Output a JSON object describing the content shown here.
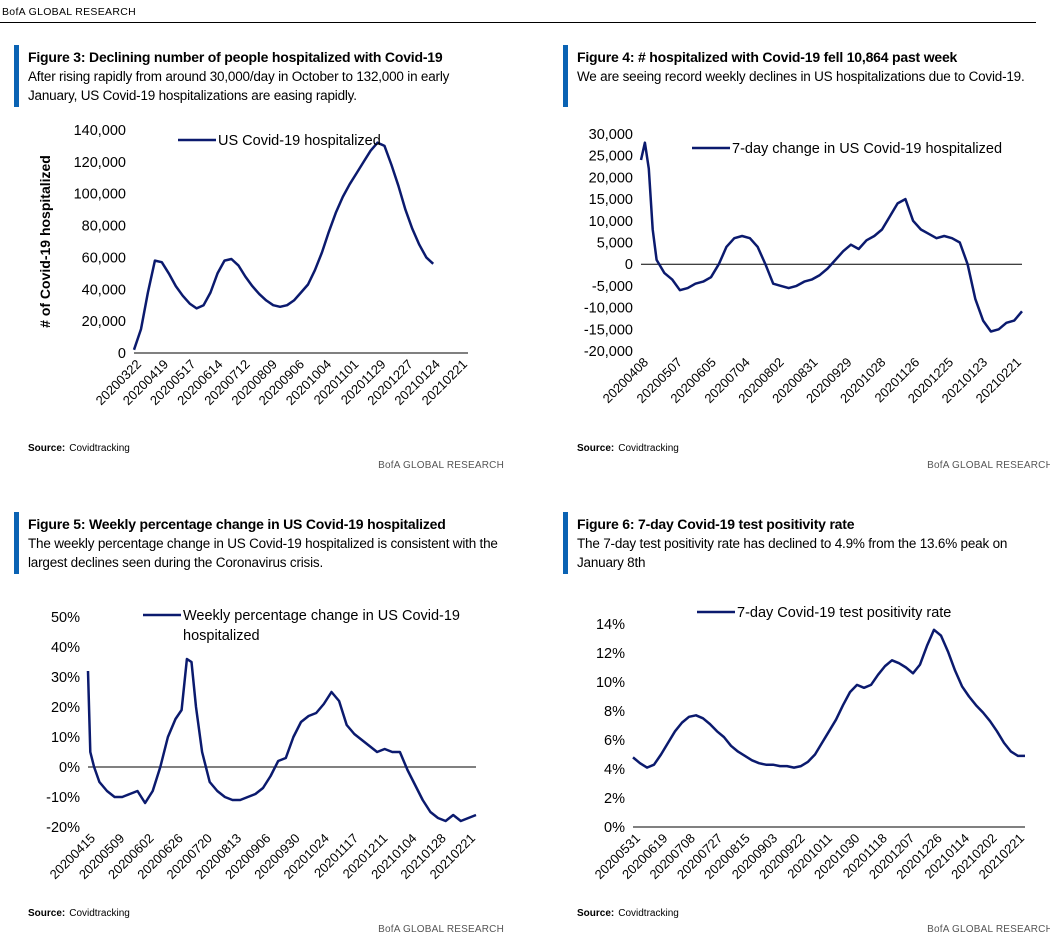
{
  "header": {
    "brand": "BofA GLOBAL RESEARCH"
  },
  "colors": {
    "line": "#0b1a6e",
    "accent": "#0a63b4"
  },
  "figures": [
    {
      "number_label": "Figure 3:",
      "title": "Declining number of people hospitalized with Covid-19",
      "subtitle": "After rising rapidly from around 30,000/day in October to 132,000 in early January, US Covid-19 hospitalizations are easing rapidly.",
      "source_label": "Source:",
      "source": "Covidtracking",
      "brand": "BofA GLOBAL RESEARCH"
    },
    {
      "number_label": "Figure 4:",
      "title": "# hospitalized with Covid-19 fell 10,864 past week",
      "subtitle": "We are seeing record weekly declines in US hospitalizations due to Covid-19.",
      "source_label": "Source:",
      "source": "Covidtracking",
      "brand": "BofA GLOBAL RESEARCH"
    },
    {
      "number_label": "Figure 5:",
      "title": "Weekly percentage change in US Covid-19 hospitalized",
      "subtitle": "The weekly percentage change in US Covid-19 hospitalized is consistent with the largest declines seen during the Coronavirus crisis.",
      "source_label": "Source:",
      "source": "Covidtracking",
      "brand": "BofA GLOBAL RESEARCH"
    },
    {
      "number_label": "Figure 6:",
      "title": "7-day Covid-19 test positivity rate",
      "subtitle": "The 7-day test positivity rate has declined to 4.9% from the 13.6% peak on January 8th",
      "source_label": "Source:",
      "source": "Covidtracking",
      "brand": "BofA GLOBAL RESEARCH"
    }
  ],
  "chart_data": [
    {
      "type": "line",
      "title": "Declining number of people hospitalized with Covid-19",
      "ylabel": "# of Covid-19 hospitalized",
      "legend": "US Covid-19 hospitalized",
      "ylim": [
        0,
        140000
      ],
      "yticks": [
        0,
        20000,
        40000,
        60000,
        80000,
        100000,
        120000,
        140000
      ],
      "ytick_labels": [
        "0",
        "20,000",
        "40,000",
        "60,000",
        "80,000",
        "100,000",
        "120,000",
        "140,000"
      ],
      "xticks": [
        "20200322",
        "20200419",
        "20200517",
        "20200614",
        "20200712",
        "20200809",
        "20200906",
        "20201004",
        "20201101",
        "20201129",
        "20201227",
        "20210124",
        "20210221"
      ],
      "zero_line": false,
      "series": [
        {
          "name": "US Covid-19 hospitalized",
          "x": [
            0,
            2,
            4,
            6,
            8,
            10,
            12,
            14,
            16,
            18,
            20,
            22,
            24,
            26,
            28,
            30,
            32,
            34,
            36,
            38,
            40,
            42,
            44,
            46,
            48,
            50,
            52,
            54,
            56,
            58,
            60,
            62,
            64,
            66,
            68,
            70,
            72,
            74,
            76,
            78,
            80,
            82,
            84,
            86,
            88,
            90,
            92,
            94,
            96
          ],
          "y": [
            2000,
            15000,
            38000,
            58000,
            57000,
            50000,
            42000,
            36000,
            31000,
            28000,
            30000,
            38000,
            50000,
            58000,
            59000,
            55000,
            48000,
            42000,
            37000,
            33000,
            30000,
            29000,
            30000,
            33000,
            38000,
            43000,
            52000,
            63000,
            76000,
            88000,
            98000,
            106000,
            113000,
            120000,
            127000,
            132000,
            130000,
            118000,
            105000,
            90000,
            78000,
            68000,
            60000,
            56000,
            null,
            null,
            null,
            null,
            null
          ]
        }
      ]
    },
    {
      "type": "line",
      "title": "# hospitalized with Covid-19 fell 10,864 past week",
      "legend": "7-day change in US Covid-19 hospitalized",
      "ylim": [
        -20000,
        30000
      ],
      "yticks": [
        -20000,
        -15000,
        -10000,
        -5000,
        0,
        5000,
        10000,
        15000,
        20000,
        25000,
        30000
      ],
      "ytick_labels": [
        "-20,000",
        "-15,000",
        "-10,000",
        "-5,000",
        "0",
        "5,000",
        "10,000",
        "15,000",
        "20,000",
        "25,000",
        "30,000"
      ],
      "xticks": [
        "20200408",
        "20200507",
        "20200605",
        "20200704",
        "20200802",
        "20200831",
        "20200929",
        "20201028",
        "20201126",
        "20201225",
        "20210123",
        "20210221"
      ],
      "zero_line": true,
      "series": [
        {
          "name": "7-day change in US Covid-19 hospitalized",
          "x": [
            0,
            0.5,
            1,
            1.5,
            2,
            3,
            4,
            5,
            6,
            7,
            8,
            9,
            10,
            11,
            12,
            13,
            14,
            15,
            16,
            17,
            18,
            19,
            20,
            21,
            22,
            23,
            24,
            25,
            26,
            27,
            28,
            29,
            30,
            31,
            32,
            33,
            34,
            35,
            36,
            37,
            38,
            39,
            40,
            41,
            42,
            43,
            44,
            45,
            46,
            47,
            48,
            49
          ],
          "y": [
            24000,
            28000,
            22000,
            8000,
            1000,
            -2000,
            -3500,
            -6000,
            -5500,
            -4500,
            -4000,
            -3000,
            0,
            4000,
            6000,
            6500,
            6000,
            4000,
            0,
            -4500,
            -5000,
            -5500,
            -5000,
            -4000,
            -3500,
            -2500,
            -1000,
            1000,
            3000,
            4500,
            3500,
            5500,
            6500,
            8000,
            11000,
            14000,
            15000,
            10000,
            8000,
            7000,
            6000,
            6500,
            6000,
            5000,
            0,
            -8000,
            -13000,
            -15500,
            -15000,
            -13500,
            -13000,
            -10864
          ]
        }
      ]
    },
    {
      "type": "line",
      "title": "Weekly percentage change in US Covid-19 hospitalized",
      "legend": "Weekly percentage change in US Covid-19 hospitalized",
      "ylim": [
        -20,
        50
      ],
      "yticks": [
        -20,
        -10,
        0,
        10,
        20,
        30,
        40,
        50
      ],
      "ytick_labels": [
        "-20%",
        "-10%",
        "0%",
        "10%",
        "20%",
        "30%",
        "40%",
        "50%"
      ],
      "xticks": [
        "20200415",
        "20200509",
        "20200602",
        "20200626",
        "20200720",
        "20200813",
        "20200906",
        "20200930",
        "20201024",
        "20201117",
        "20201211",
        "20210104",
        "20210128",
        "20210221"
      ],
      "zero_line": true,
      "series": [
        {
          "name": "Weekly percentage change in US Covid-19 hospitalized",
          "x": [
            0,
            0.3,
            0.8,
            1.5,
            2.5,
            3.5,
            4.5,
            5.5,
            6.5,
            7.5,
            8.5,
            9.5,
            10.5,
            11.5,
            12.3,
            13,
            13.6,
            14.2,
            15,
            16,
            17,
            18,
            19,
            20,
            21,
            22,
            23,
            24,
            25,
            26,
            27,
            28,
            29,
            30,
            31,
            32,
            33,
            34,
            35,
            36,
            37,
            38,
            39,
            40,
            41,
            42,
            43,
            44,
            45,
            46,
            47,
            48,
            49,
            50,
            51
          ],
          "y": [
            32,
            5,
            0,
            -5,
            -8,
            -10,
            -10,
            -9,
            -8,
            -12,
            -8,
            0,
            10,
            16,
            19,
            36,
            35,
            20,
            5,
            -5,
            -8,
            -10,
            -11,
            -11,
            -10,
            -9,
            -7,
            -3,
            2,
            3,
            10,
            15,
            17,
            18,
            21,
            25,
            22,
            14,
            11,
            9,
            7,
            5,
            6,
            5,
            5,
            -1,
            -6,
            -11,
            -15,
            -17,
            -18,
            -16,
            -18,
            -17,
            -16
          ]
        }
      ]
    },
    {
      "type": "line",
      "title": "7-day Covid-19 test positivity rate",
      "legend": "7-day Covid-19 test positivity rate",
      "ylim": [
        0,
        14
      ],
      "yticks": [
        0,
        2,
        4,
        6,
        8,
        10,
        12,
        14
      ],
      "ytick_labels": [
        "0%",
        "2%",
        "4%",
        "6%",
        "8%",
        "10%",
        "12%",
        "14%"
      ],
      "xticks": [
        "20200531",
        "20200619",
        "20200708",
        "20200727",
        "20200815",
        "20200903",
        "20200922",
        "20201011",
        "20201030",
        "20201118",
        "20201207",
        "20201226",
        "20210114",
        "20210202",
        "20210221"
      ],
      "zero_line": false,
      "series": [
        {
          "name": "7-day Covid-19 test positivity rate",
          "x": [
            0,
            1,
            2,
            3,
            4,
            5,
            6,
            7,
            8,
            9,
            10,
            11,
            12,
            13,
            14,
            15,
            16,
            17,
            18,
            19,
            20,
            21,
            22,
            23,
            24,
            25,
            26,
            27,
            28,
            29,
            30,
            31,
            32,
            33,
            34,
            35,
            36,
            37,
            38,
            39,
            40,
            41,
            42,
            43,
            44,
            45,
            46,
            47,
            48,
            49,
            50,
            51,
            52,
            53,
            54,
            55,
            56
          ],
          "y": [
            4.8,
            4.4,
            4.1,
            4.3,
            5.0,
            5.8,
            6.6,
            7.2,
            7.6,
            7.7,
            7.5,
            7.1,
            6.6,
            6.2,
            5.6,
            5.2,
            4.9,
            4.6,
            4.4,
            4.3,
            4.3,
            4.2,
            4.2,
            4.1,
            4.2,
            4.5,
            5.0,
            5.8,
            6.6,
            7.4,
            8.4,
            9.3,
            9.8,
            9.6,
            9.8,
            10.5,
            11.1,
            11.5,
            11.3,
            11.0,
            10.6,
            11.2,
            12.5,
            13.6,
            13.2,
            12.1,
            10.8,
            9.7,
            9.0,
            8.4,
            7.9,
            7.3,
            6.6,
            5.8,
            5.2,
            4.9,
            4.9
          ]
        }
      ]
    }
  ]
}
